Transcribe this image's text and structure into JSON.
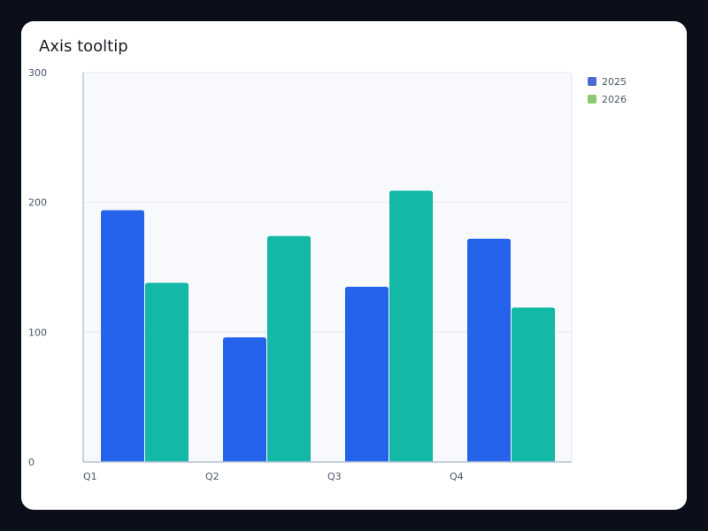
{
  "chart_data": {
    "type": "bar",
    "title": "Axis tooltip",
    "categories": [
      "Q1",
      "Q2",
      "Q3",
      "Q4"
    ],
    "series": [
      {
        "name": "2025",
        "values": [
          194,
          96,
          135,
          172
        ],
        "color": "#2563eb",
        "legend_color": "#4a6bd1"
      },
      {
        "name": "2026",
        "values": [
          138,
          174,
          209,
          119
        ],
        "color": "#14b8a6",
        "legend_color": "#8cc870"
      }
    ],
    "ylim": [
      0,
      300
    ],
    "yticks": [
      0,
      100,
      200,
      300
    ],
    "xlabel": "",
    "ylabel": "",
    "grid": true,
    "legend_position": "right"
  }
}
